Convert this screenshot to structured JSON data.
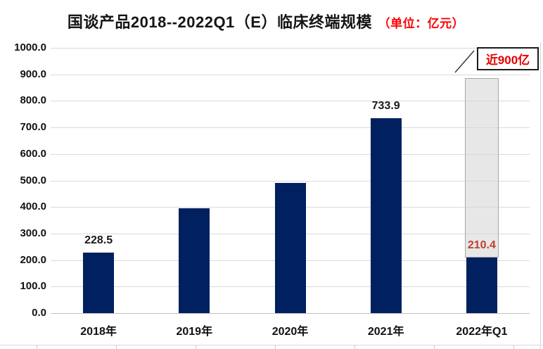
{
  "title": {
    "main": "国谈产品2018--2022Q1（E）临床终端规模",
    "unit": "（单位：亿元）"
  },
  "colors": {
    "bar": "#002060",
    "grid": "#d9d9d9",
    "axis_line": "#c2c2c2",
    "title_unit_red": "#ff0000",
    "annotation_red": "#e60000",
    "overlay_label_red": "#c13e30",
    "overlay_fill": "rgba(217,217,217,0.62)",
    "overlay_border": "#a6a6a6",
    "data_label_black": "#1a1a1a"
  },
  "chart_data": {
    "type": "bar",
    "title": "国谈产品2018--2022Q1（E）临床终端规模（单位：亿元）",
    "categories": [
      "2018年",
      "2019年",
      "2020年",
      "2021年",
      "2022年Q1"
    ],
    "values": [
      228.5,
      395,
      490,
      733.9,
      210.4
    ],
    "values_estimated_flags": [
      false,
      true,
      true,
      false,
      false
    ],
    "data_labels": [
      "228.5",
      "",
      "",
      "733.9",
      "210.4"
    ],
    "label_colors": [
      "#1a1a1a",
      "",
      "",
      "#1a1a1a",
      "#c13e30"
    ],
    "xlabel": "",
    "ylabel": "",
    "ylim": [
      0,
      1000
    ],
    "y_tick_step": 100,
    "y_tick_labels_top_down": [
      "1000.0",
      "900.0",
      "800.0",
      "700.0",
      "600.0",
      "500.0",
      "400.0",
      "300.0",
      "200.0",
      "100.0",
      "0.0"
    ],
    "grid": true,
    "legend": false,
    "overlay": {
      "category": "2022年Q1",
      "from": 210.4,
      "to": 885,
      "estimated": true,
      "annotation": "近900亿"
    }
  }
}
